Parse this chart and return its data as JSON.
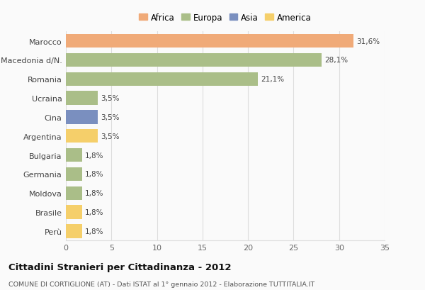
{
  "categories": [
    "Marocco",
    "Macedonia d/N.",
    "Romania",
    "Ucraina",
    "Cina",
    "Argentina",
    "Bulgaria",
    "Germania",
    "Moldova",
    "Brasile",
    "Perù"
  ],
  "values": [
    31.6,
    28.1,
    21.1,
    3.5,
    3.5,
    3.5,
    1.8,
    1.8,
    1.8,
    1.8,
    1.8
  ],
  "colors": [
    "#F0AA78",
    "#AABE88",
    "#AABE88",
    "#AABE88",
    "#7A8FBF",
    "#F5CF6A",
    "#AABE88",
    "#AABE88",
    "#AABE88",
    "#F5CF6A",
    "#F5CF6A"
  ],
  "labels": [
    "31,6%",
    "28,1%",
    "21,1%",
    "3,5%",
    "3,5%",
    "3,5%",
    "1,8%",
    "1,8%",
    "1,8%",
    "1,8%",
    "1,8%"
  ],
  "legend_items": [
    {
      "label": "Africa",
      "color": "#F0AA78"
    },
    {
      "label": "Europa",
      "color": "#AABE88"
    },
    {
      "label": "Asia",
      "color": "#7A8FBF"
    },
    {
      "label": "America",
      "color": "#F5CF6A"
    }
  ],
  "xlim": [
    0,
    35
  ],
  "xticks": [
    0,
    5,
    10,
    15,
    20,
    25,
    30,
    35
  ],
  "title": "Cittadini Stranieri per Cittadinanza - 2012",
  "subtitle": "COMUNE DI CORTIGLIONE (AT) - Dati ISTAT al 1° gennaio 2012 - Elaborazione TUTTITALIA.IT",
  "background_color": "#FAFAFA",
  "grid_color": "#DDDDDD",
  "bar_height": 0.72,
  "label_fontsize": 7.5,
  "ytick_fontsize": 8.0
}
